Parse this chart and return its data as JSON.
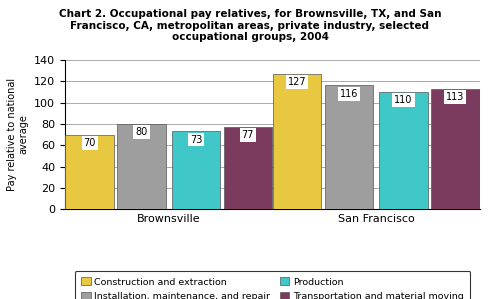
{
  "title": "Chart 2. Occupational pay relatives, for Brownsville, TX, and San\nFrancisco, CA, metropolitan areas, private industry, selected\noccupational groups, 2004",
  "groups": [
    "Brownsville",
    "San Francisco"
  ],
  "categories": [
    "Construction and extraction",
    "Installation, maintenance, and repair",
    "Production",
    "Transportation and material moving"
  ],
  "values": {
    "Brownsville": [
      70,
      80,
      73,
      77
    ],
    "San Francisco": [
      127,
      116,
      110,
      113
    ]
  },
  "colors": [
    "#E8C840",
    "#9E9E9E",
    "#40C8C8",
    "#7B3B5E"
  ],
  "ylabel": "Pay relative to national\naverage",
  "ylim": [
    0,
    140
  ],
  "yticks": [
    0,
    20,
    40,
    60,
    80,
    100,
    120,
    140
  ],
  "background_color": "#ffffff"
}
